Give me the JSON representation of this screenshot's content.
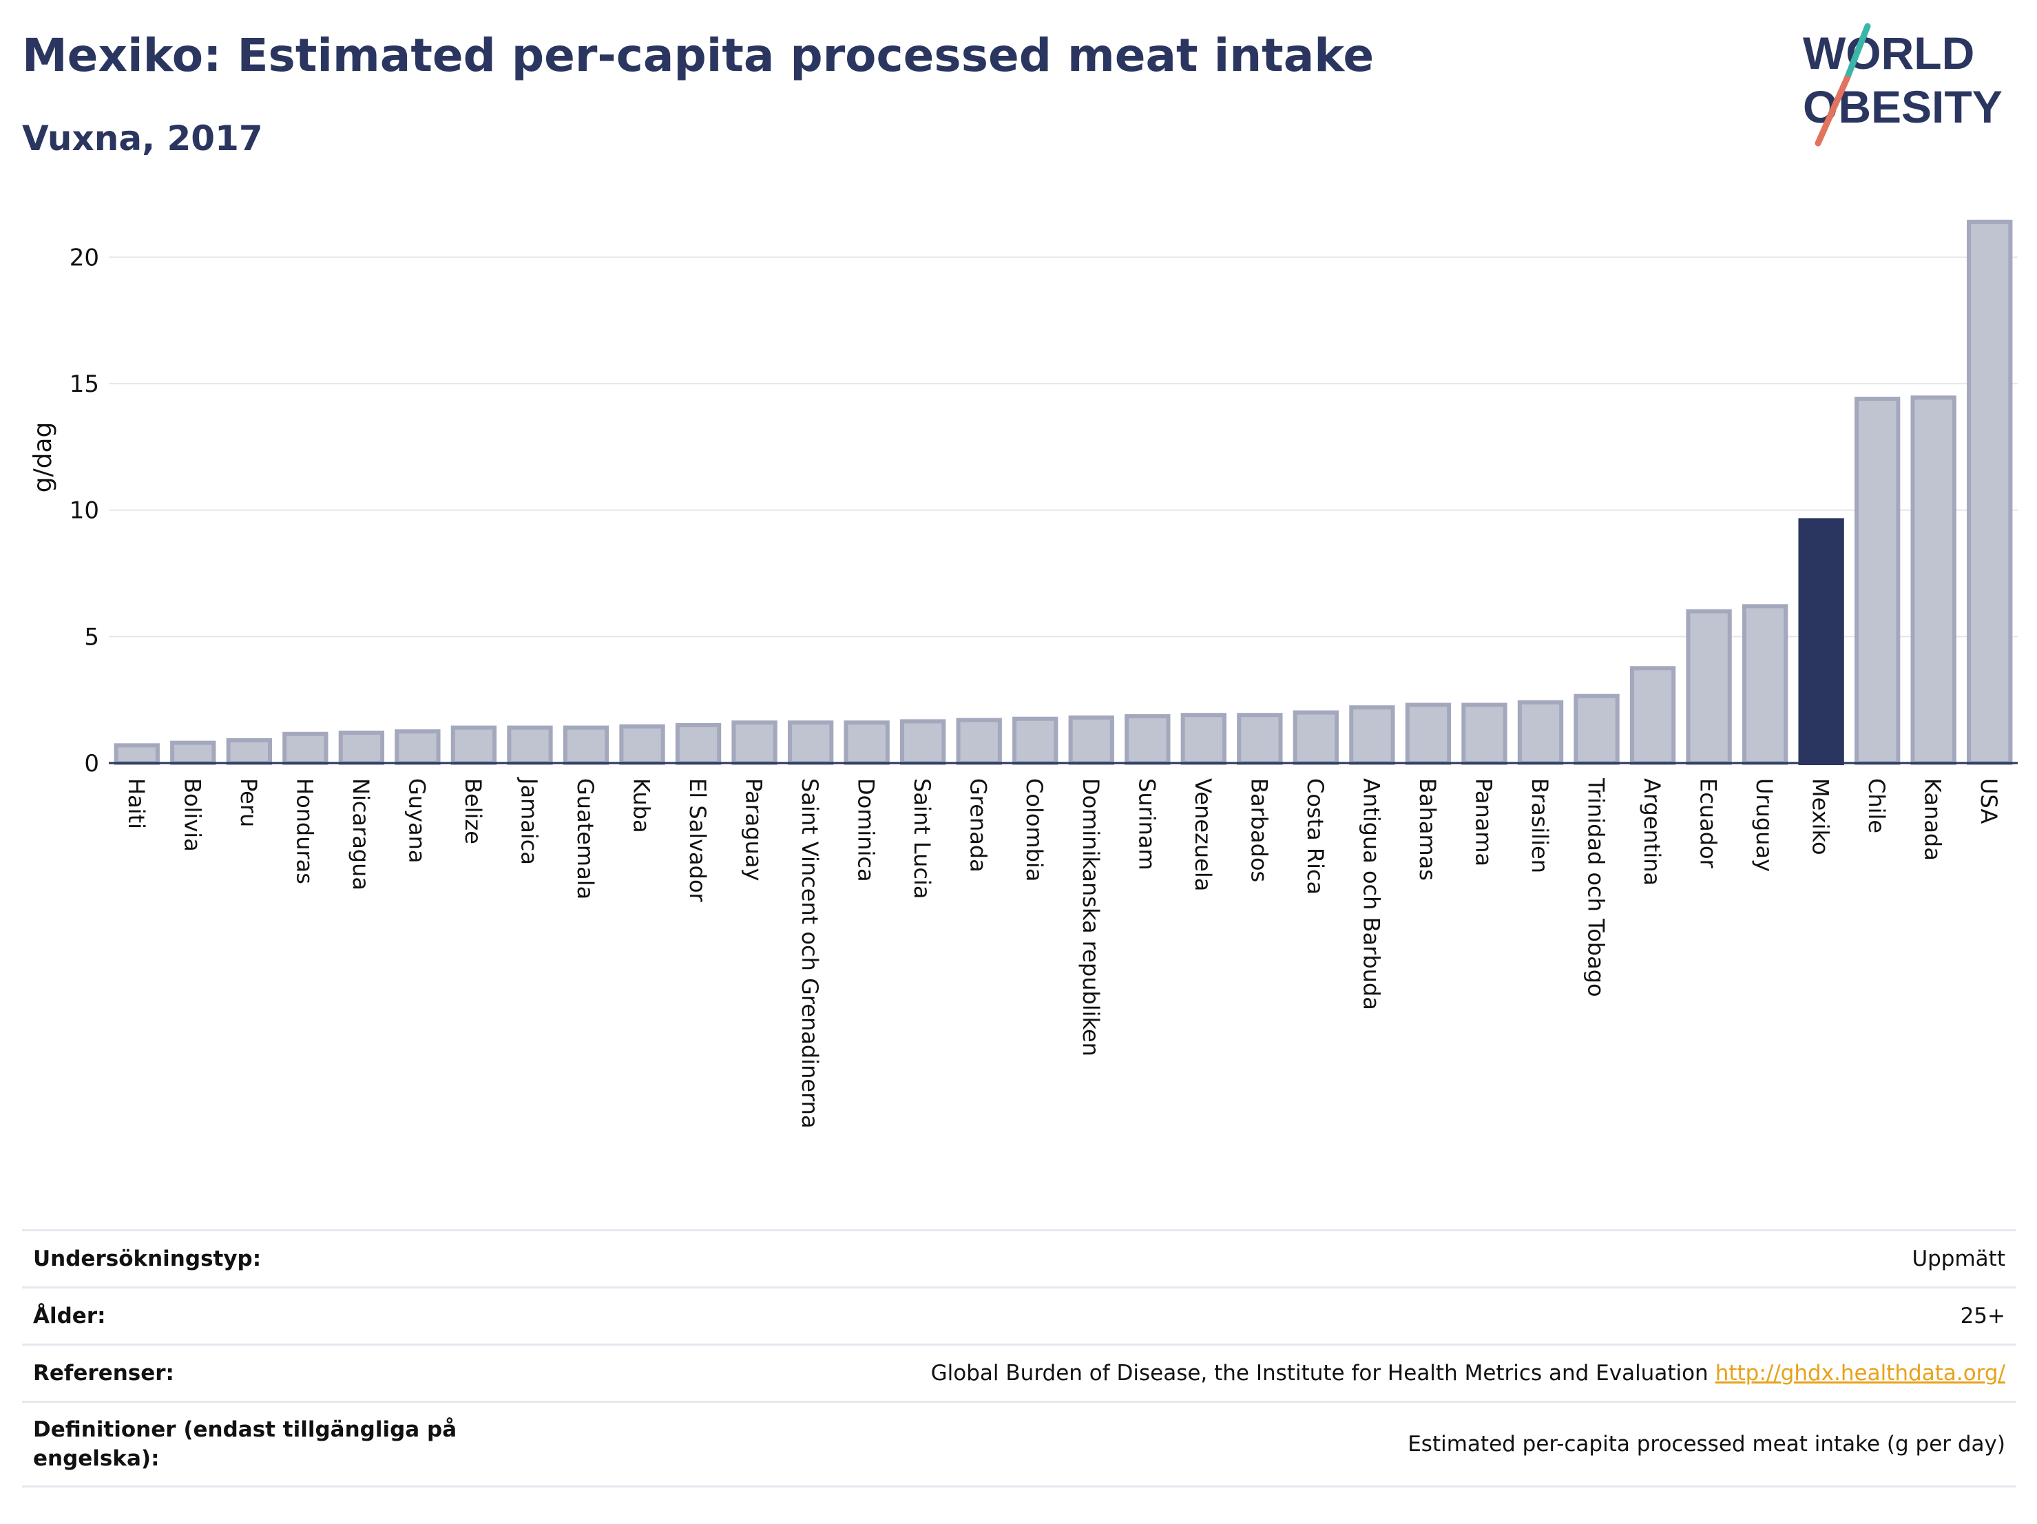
{
  "header": {
    "title": "Mexiko: Estimated per-capita processed meat intake",
    "subtitle": "Vuxna, 2017"
  },
  "logo": {
    "line1": "WORLD",
    "line2": "OBESITY"
  },
  "colors": {
    "bar": "#c0c3d0",
    "bar_stroke": "#a3a8bd",
    "highlight": "#2b3660",
    "accent_teal": "#3ab6a8",
    "accent_red": "#e2735e"
  },
  "chart_data": {
    "type": "bar",
    "ylabel": "g/dag",
    "ylim": [
      0,
      22
    ],
    "yticks": [
      0,
      5,
      10,
      15,
      20
    ],
    "grid": true,
    "highlight": "Mexiko",
    "categories": [
      "Haiti",
      "Bolivia",
      "Peru",
      "Honduras",
      "Nicaragua",
      "Guyana",
      "Belize",
      "Jamaica",
      "Guatemala",
      "Kuba",
      "El Salvador",
      "Paraguay",
      "Saint Vincent och Grenadinerna",
      "Dominica",
      "Saint Lucia",
      "Grenada",
      "Colombia",
      "Dominikanska republiken",
      "Surinam",
      "Venezuela",
      "Barbados",
      "Costa Rica",
      "Antigua och Barbuda",
      "Bahamas",
      "Panama",
      "Brasilien",
      "Trinidad och Tobago",
      "Argentina",
      "Ecuador",
      "Uruguay",
      "Mexiko",
      "Chile",
      "Kanada",
      "USA"
    ],
    "values": [
      0.7,
      0.8,
      0.9,
      1.15,
      1.2,
      1.25,
      1.4,
      1.4,
      1.4,
      1.45,
      1.5,
      1.6,
      1.6,
      1.6,
      1.65,
      1.7,
      1.75,
      1.8,
      1.85,
      1.9,
      1.9,
      2.0,
      2.2,
      2.3,
      2.3,
      2.4,
      2.65,
      3.75,
      6.0,
      6.2,
      9.6,
      14.4,
      14.45,
      21.4
    ]
  },
  "info": [
    {
      "label": "Undersökningstyp:",
      "value": "Uppmätt"
    },
    {
      "label": "Ålder:",
      "value": "25+"
    },
    {
      "label": "Referenser:",
      "value": "Global Burden of Disease, the Institute for Health Metrics and Evaluation",
      "link": "http://ghdx.healthdata.org/"
    },
    {
      "label": "Definitioner (endast tillgängliga på engelska):",
      "value": "Estimated per-capita processed meat intake (g per day)"
    }
  ]
}
